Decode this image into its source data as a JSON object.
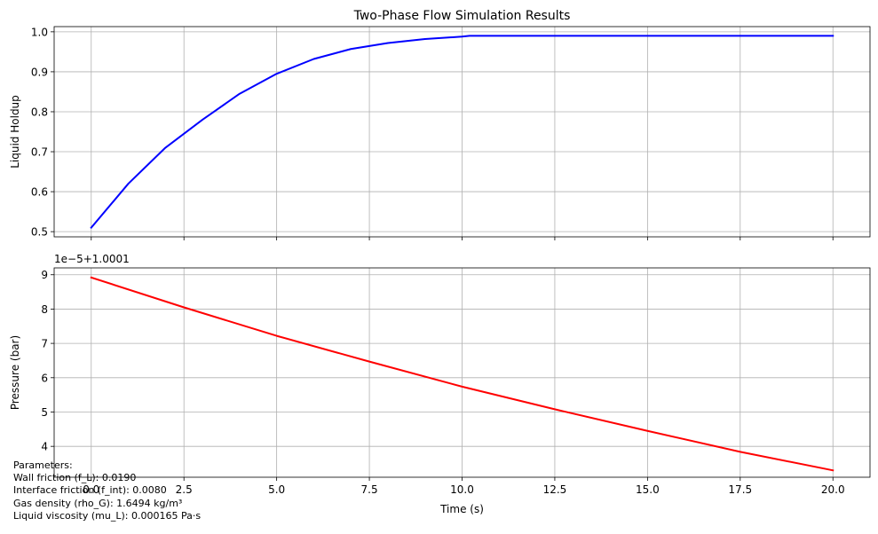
{
  "chart_data": [
    {
      "type": "line",
      "title": "Two-Phase Flow Simulation Results",
      "xlabel": "",
      "ylabel": "Liquid Holdup",
      "xlim": [
        -1,
        21
      ],
      "ylim": [
        0.487,
        1.013
      ],
      "x_ticks": [
        0,
        2.5,
        5,
        7.5,
        10,
        12.5,
        15,
        17.5,
        20
      ],
      "x_tick_labels_visible": false,
      "y_ticks": [
        0.5,
        0.6,
        0.7,
        0.8,
        0.9,
        1.0
      ],
      "y_tick_labels": [
        "0.5",
        "0.6",
        "0.7",
        "0.8",
        "0.9",
        "1.0"
      ],
      "grid": true,
      "series": [
        {
          "color": "#0000ff",
          "x": [
            0,
            1,
            2,
            3,
            4,
            5,
            6,
            7,
            8,
            9,
            10,
            10.2,
            11,
            12,
            13,
            14,
            15,
            16,
            17,
            18,
            19,
            20
          ],
          "y": [
            0.51,
            0.62,
            0.71,
            0.78,
            0.845,
            0.895,
            0.932,
            0.957,
            0.972,
            0.982,
            0.988,
            0.99,
            0.99,
            0.99,
            0.99,
            0.99,
            0.99,
            0.99,
            0.99,
            0.99,
            0.99,
            0.99
          ]
        }
      ]
    },
    {
      "type": "line",
      "title": "",
      "xlabel": "Time (s)",
      "ylabel": "Pressure (bar)",
      "offset_label": "1e−5+1.0001",
      "xlim": [
        -1,
        21
      ],
      "ylim": [
        3.1,
        9.2
      ],
      "x_ticks": [
        0,
        2.5,
        5,
        7.5,
        10,
        12.5,
        15,
        17.5,
        20
      ],
      "x_tick_labels": [
        "0.0",
        "2.5",
        "5.0",
        "7.5",
        "10.0",
        "12.5",
        "15.0",
        "17.5",
        "20.0"
      ],
      "y_ticks": [
        4,
        5,
        6,
        7,
        8,
        9
      ],
      "y_tick_labels": [
        "4",
        "5",
        "6",
        "7",
        "8",
        "9"
      ],
      "grid": true,
      "series": [
        {
          "color": "#ff0000",
          "x": [
            0,
            2.5,
            5,
            7.5,
            10,
            12.5,
            15,
            17.5,
            20
          ],
          "y": [
            8.92,
            8.05,
            7.22,
            6.47,
            5.74,
            5.08,
            4.45,
            3.84,
            3.3
          ]
        }
      ]
    }
  ],
  "parameters": {
    "heading": "Parameters:",
    "lines": [
      "Wall friction (f_L): 0.0190",
      "Interface friction (f_int): 0.0080",
      "Gas density (rho_G): 1.6494 kg/m³",
      "Liquid viscosity (mu_L): 0.000165 Pa·s"
    ]
  }
}
